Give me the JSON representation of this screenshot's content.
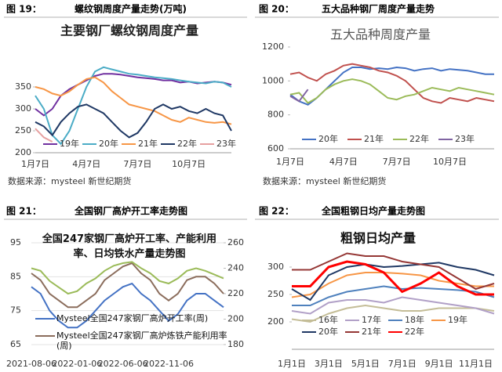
{
  "chart_data": [
    {
      "type": "line",
      "figure_label": "图 19：",
      "caption": "螺纹钢周度产量走势(万吨)",
      "title": "主要钢厂螺纹钢周度产量",
      "source": "数据来源：mysteel 新世纪期货",
      "categories": [
        "1月7日",
        null,
        null,
        null,
        null,
        null,
        "4月7日",
        null,
        null,
        null,
        null,
        null,
        "7月7日",
        null,
        null,
        null,
        null,
        null,
        "10月7日",
        null,
        null,
        null,
        null,
        null
      ],
      "ylim": [
        200,
        450
      ],
      "yticks": [
        200,
        250,
        300,
        350
      ],
      "series": [
        {
          "name": "19年",
          "color": "#7030a0",
          "values": [
            300,
            285,
            300,
            330,
            345,
            355,
            365,
            375,
            380,
            380,
            378,
            375,
            372,
            370,
            368,
            365,
            365,
            360,
            362,
            358,
            360,
            362,
            360,
            355
          ]
        },
        {
          "name": "20年",
          "color": "#4bacc6",
          "values": [
            330,
            300,
            240,
            220,
            250,
            300,
            350,
            385,
            395,
            390,
            385,
            380,
            378,
            375,
            372,
            370,
            368,
            365,
            362,
            360,
            358,
            362,
            360,
            350
          ]
        },
        {
          "name": "21年",
          "color": "#f79646",
          "values": [
            350,
            345,
            335,
            330,
            340,
            355,
            368,
            372,
            360,
            340,
            325,
            310,
            305,
            300,
            295,
            285,
            275,
            270,
            280,
            275,
            270,
            268,
            270,
            265
          ]
        },
        {
          "name": "22年",
          "color": "#1f3864",
          "values": [
            270,
            260,
            240,
            270,
            290,
            305,
            310,
            300,
            290,
            270,
            250,
            235,
            245,
            270,
            300,
            310,
            300,
            305,
            295,
            290,
            300,
            290,
            285,
            250
          ]
        },
        {
          "name": "23年",
          "color": "#e6a0a0",
          "values": [
            255,
            235,
            225,
            null,
            null,
            null,
            null,
            null,
            null,
            null,
            null,
            null,
            null,
            null,
            null,
            null,
            null,
            null,
            null,
            null,
            null,
            null,
            null,
            null
          ]
        }
      ]
    },
    {
      "type": "line",
      "figure_label": "图 20：",
      "caption": "五大品种钢厂周度产量走势",
      "title": "五大品种周度产量",
      "source": "数据来源：mysteel 新世纪期货",
      "categories": [
        "1月7日",
        null,
        null,
        null,
        null,
        null,
        "4月7日",
        null,
        null,
        null,
        null,
        null,
        "7月7日",
        null,
        null,
        null,
        null,
        null,
        "10月7日",
        null,
        null,
        null,
        null,
        null
      ],
      "ylim": [
        600,
        1200
      ],
      "yticks": [
        600,
        800,
        1000,
        1200
      ],
      "series": [
        {
          "name": "20年",
          "color": "#4472c4",
          "values": [
            920,
            880,
            860,
            900,
            950,
            1000,
            1050,
            1080,
            1080,
            1070,
            1075,
            1070,
            1080,
            1075,
            1060,
            1070,
            1075,
            1060,
            1070,
            1065,
            1060,
            1050,
            1040,
            1040
          ]
        },
        {
          "name": "21年",
          "color": "#c0504d",
          "values": [
            1040,
            1050,
            1020,
            1000,
            1040,
            1060,
            1090,
            1100,
            1090,
            1080,
            1060,
            1050,
            1030,
            1000,
            950,
            900,
            880,
            870,
            900,
            890,
            880,
            900,
            890,
            880
          ]
        },
        {
          "name": "22年",
          "color": "#9bbb59",
          "values": [
            920,
            930,
            870,
            900,
            950,
            980,
            1000,
            1010,
            1000,
            980,
            940,
            900,
            890,
            910,
            920,
            940,
            960,
            950,
            940,
            960,
            950,
            940,
            930,
            920
          ]
        },
        {
          "name": "23年",
          "color": "#8064a2",
          "values": [
            910,
            880,
            950,
            null,
            null,
            null,
            null,
            null,
            null,
            null,
            null,
            null,
            null,
            null,
            null,
            null,
            null,
            null,
            null,
            null,
            null,
            null,
            null,
            null
          ]
        }
      ]
    },
    {
      "type": "line",
      "figure_label": "图 21：",
      "caption": "全国钢厂高炉开工率走势图",
      "title": "全国247家钢厂高炉开工率、产能利用率、日均铁水产量走势图",
      "grid": true,
      "categories": [
        "2021-08-06",
        null,
        null,
        null,
        null,
        "2022-01-06",
        null,
        null,
        null,
        null,
        "2022-06-06",
        null,
        null,
        null,
        null,
        "2022-11-06",
        null,
        null,
        null,
        null,
        null,
        null
      ],
      "ylim": [
        65,
        95
      ],
      "yticks": [
        65,
        75,
        85,
        95
      ],
      "y2lim": [
        180,
        260
      ],
      "y2ticks": [
        180,
        200,
        220,
        240,
        260
      ],
      "series": [
        {
          "name": "Mysteel全国247家钢厂高炉开工率(周)",
          "color": "#4472c4",
          "values": [
            82,
            80,
            75,
            72,
            70,
            70,
            72,
            75,
            78,
            80,
            82,
            83,
            80,
            78,
            75,
            72,
            74,
            78,
            80,
            80,
            78,
            76
          ]
        },
        {
          "name": "Mysteel全国247家钢厂高炉炼铁产能利用率(周)",
          "color": "#8b6d5c",
          "values": [
            86,
            84,
            80,
            78,
            76,
            76,
            78,
            80,
            84,
            86,
            88,
            89,
            86,
            84,
            80,
            78,
            80,
            84,
            85,
            85,
            83,
            80
          ]
        },
        {
          "color": "#9bbb59",
          "axis": "y2",
          "values": [
            240,
            238,
            230,
            225,
            220,
            222,
            228,
            232,
            238,
            242,
            244,
            245,
            240,
            236,
            230,
            228,
            232,
            238,
            240,
            238,
            235,
            232
          ]
        }
      ]
    },
    {
      "type": "line",
      "figure_label": "图 22：",
      "caption": "全国粗钢日均产量走势图",
      "title": "粗钢日均产量",
      "categories": [
        "1月1日",
        null,
        "3月1日",
        null,
        "5月1日",
        null,
        "7月1日",
        null,
        "9月1日",
        null,
        "11月1日",
        null
      ],
      "ylim": [
        150,
        370
      ],
      "yticks": [
        200,
        250,
        300
      ],
      "series": [
        {
          "name": "16年",
          "color": "#c4bd97",
          "values": [
            205,
            200,
            215,
            225,
            230,
            225,
            220,
            220,
            225,
            225,
            225,
            220
          ]
        },
        {
          "name": "17年",
          "color": "#b1a0c7",
          "values": [
            220,
            215,
            235,
            240,
            240,
            235,
            245,
            240,
            235,
            230,
            225,
            215
          ]
        },
        {
          "name": "18年",
          "color": "#4f81bd",
          "values": [
            230,
            230,
            245,
            255,
            260,
            265,
            260,
            262,
            260,
            258,
            255,
            245
          ]
        },
        {
          "name": "19年",
          "color": "#f79646",
          "values": [
            245,
            250,
            270,
            285,
            290,
            290,
            288,
            285,
            275,
            270,
            265,
            265
          ]
        },
        {
          "name": "20年",
          "color": "#1f3864",
          "values": [
            260,
            240,
            285,
            300,
            305,
            300,
            302,
            305,
            308,
            300,
            295,
            285
          ]
        },
        {
          "name": "21年",
          "color": "#953735",
          "values": [
            295,
            295,
            310,
            325,
            320,
            320,
            310,
            305,
            300,
            280,
            260,
            270
          ]
        },
        {
          "name": "22年",
          "color": "#ff0000",
          "values": [
            265,
            265,
            300,
            310,
            305,
            290,
            255,
            270,
            290,
            265,
            250,
            250
          ]
        }
      ]
    }
  ]
}
